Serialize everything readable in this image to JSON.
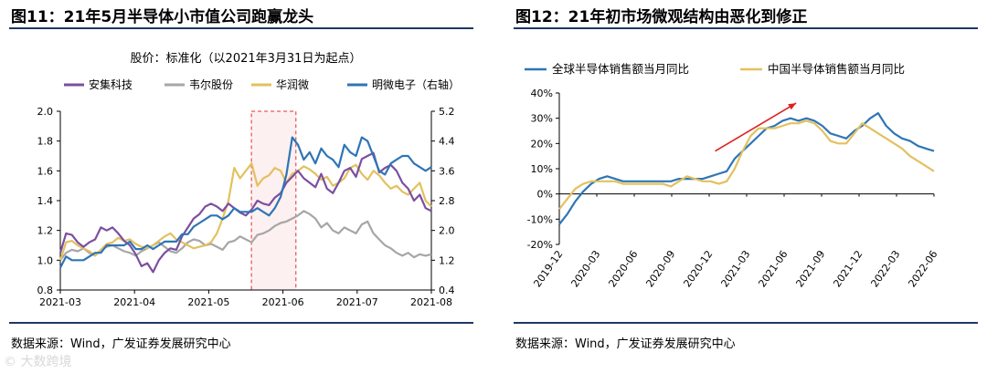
{
  "left": {
    "title": "图11：21年5月半导体小市值公司跑赢龙头",
    "source": "数据来源：Wind，广发证券发展研究中心"
  },
  "right": {
    "title": "图12：21年初市场微观结构由恶化到修正",
    "source": "数据来源：Wind，广发证券发展研究中心"
  },
  "watermark": "© 大数跨境",
  "chart_data": [
    {
      "type": "line",
      "title": "股价：标准化（以2021年3月31日为起点）",
      "x_ticks": [
        "2021-03",
        "2021-04",
        "2021-05",
        "2021-06",
        "2021-07",
        "2021-08"
      ],
      "ylim_left": [
        0.8,
        2.0
      ],
      "yticks_left": [
        "0.8",
        "1.0",
        "1.2",
        "1.4",
        "1.6",
        "1.8",
        "2.0"
      ],
      "ylim_right": [
        0.4,
        5.2
      ],
      "yticks_right": [
        "0.4",
        "1.2",
        "2.0",
        "2.8",
        "3.6",
        "4.4",
        "5.2"
      ],
      "highlight_range": [
        0.515,
        0.635
      ],
      "series": [
        {
          "name": "安集科技",
          "color": "#7b4fa0",
          "axis": "left",
          "values": [
            1.05,
            1.18,
            1.17,
            1.12,
            1.09,
            1.12,
            1.14,
            1.22,
            1.2,
            1.22,
            1.18,
            1.13,
            1.1,
            1.04,
            0.96,
            0.98,
            0.92,
            1.0,
            1.05,
            1.08,
            1.07,
            1.16,
            1.22,
            1.28,
            1.31,
            1.36,
            1.38,
            1.36,
            1.33,
            1.38,
            1.35,
            1.32,
            1.3,
            1.34,
            1.4,
            1.38,
            1.37,
            1.42,
            1.45,
            1.52,
            1.56,
            1.6,
            1.55,
            1.52,
            1.49,
            1.58,
            1.48,
            1.45,
            1.52,
            1.6,
            1.62,
            1.56,
            1.68,
            1.7,
            1.72,
            1.59,
            1.62,
            1.64,
            1.6,
            1.52,
            1.48,
            1.4,
            1.44,
            1.35,
            1.33
          ]
        },
        {
          "name": "韦尔股份",
          "color": "#a6a6a6",
          "axis": "left",
          "values": [
            1.0,
            1.05,
            1.07,
            1.06,
            1.08,
            1.05,
            1.03,
            1.07,
            1.09,
            1.1,
            1.08,
            1.06,
            1.05,
            1.03,
            1.06,
            1.08,
            1.1,
            1.12,
            1.09,
            1.06,
            1.05,
            1.08,
            1.12,
            1.14,
            1.13,
            1.1,
            1.11,
            1.09,
            1.07,
            1.12,
            1.13,
            1.16,
            1.14,
            1.12,
            1.17,
            1.18,
            1.2,
            1.23,
            1.25,
            1.26,
            1.28,
            1.3,
            1.33,
            1.31,
            1.28,
            1.22,
            1.25,
            1.2,
            1.18,
            1.22,
            1.2,
            1.18,
            1.24,
            1.26,
            1.18,
            1.14,
            1.1,
            1.08,
            1.05,
            1.03,
            1.05,
            1.02,
            1.04,
            1.03,
            1.04
          ]
        },
        {
          "name": "华润微",
          "color": "#e2c15f",
          "axis": "left",
          "values": [
            1.0,
            1.12,
            1.13,
            1.1,
            1.08,
            1.06,
            1.03,
            1.07,
            1.11,
            1.12,
            1.15,
            1.13,
            1.14,
            1.11,
            1.09,
            1.08,
            1.1,
            1.13,
            1.16,
            1.18,
            1.14,
            1.12,
            1.1,
            1.08,
            1.09,
            1.1,
            1.12,
            1.18,
            1.28,
            1.4,
            1.62,
            1.55,
            1.6,
            1.65,
            1.5,
            1.55,
            1.57,
            1.62,
            1.6,
            1.52,
            1.58,
            1.6,
            1.63,
            1.61,
            1.58,
            1.54,
            1.56,
            1.5,
            1.52,
            1.55,
            1.62,
            1.64,
            1.58,
            1.54,
            1.6,
            1.57,
            1.52,
            1.48,
            1.5,
            1.46,
            1.44,
            1.48,
            1.52,
            1.4,
            1.36
          ]
        },
        {
          "name": "明微电子（右轴）",
          "color": "#2e75b6",
          "axis": "right",
          "values": [
            1.0,
            1.3,
            1.2,
            1.2,
            1.2,
            1.3,
            1.4,
            1.4,
            1.6,
            1.6,
            1.6,
            1.6,
            1.7,
            1.5,
            1.5,
            1.6,
            1.5,
            1.6,
            1.7,
            1.7,
            1.7,
            1.9,
            1.9,
            2.1,
            2.2,
            2.3,
            2.4,
            2.4,
            2.3,
            2.4,
            2.6,
            2.5,
            2.5,
            2.5,
            2.6,
            2.5,
            2.4,
            2.6,
            2.9,
            3.5,
            4.5,
            4.3,
            3.9,
            4.1,
            3.8,
            4.2,
            4.0,
            3.9,
            3.7,
            4.3,
            4.1,
            4.0,
            4.5,
            4.4,
            4.0,
            3.6,
            3.5,
            3.8,
            3.9,
            4.0,
            4.0,
            3.8,
            3.7,
            3.6,
            3.7
          ]
        }
      ]
    },
    {
      "type": "line",
      "title": "",
      "x_ticks": [
        "2019-12",
        "2020-03",
        "2020-06",
        "2020-09",
        "2020-12",
        "2021-03",
        "2021-06",
        "2021-09",
        "2021-12",
        "2022-03",
        "2022-06"
      ],
      "ylim": [
        -20,
        40
      ],
      "yticks": [
        "-20%",
        "-10%",
        "0%",
        "10%",
        "20%",
        "30%",
        "40%"
      ],
      "arrow": {
        "from": [
          2020.96,
          17
        ],
        "to": [
          2021.5,
          36
        ]
      },
      "series": [
        {
          "name": "全球半导体销售额当月同比",
          "color": "#2e75b6",
          "values": [
            -12,
            -8,
            -3,
            1,
            4,
            6,
            7,
            6,
            5,
            5,
            5,
            5,
            5,
            5,
            5,
            6,
            6,
            6,
            6,
            7,
            8,
            9,
            14,
            17,
            20,
            23,
            26,
            27,
            29,
            30,
            29,
            30,
            29,
            27,
            24,
            23,
            22,
            25,
            27,
            30,
            32,
            27,
            24,
            22,
            21,
            19,
            18,
            17
          ]
        },
        {
          "name": "中国半导体销售额当月同比",
          "color": "#e2c15f",
          "values": [
            -6,
            -2,
            2,
            4,
            5,
            5,
            5,
            5,
            4,
            4,
            4,
            4,
            4,
            4,
            3,
            5,
            7,
            6,
            5,
            5,
            4,
            5,
            10,
            17,
            23,
            26,
            26,
            26,
            27,
            28,
            28,
            29,
            28,
            25,
            21,
            20,
            20,
            24,
            28,
            26,
            24,
            22,
            20,
            18,
            15,
            13,
            11,
            9
          ]
        }
      ]
    }
  ]
}
